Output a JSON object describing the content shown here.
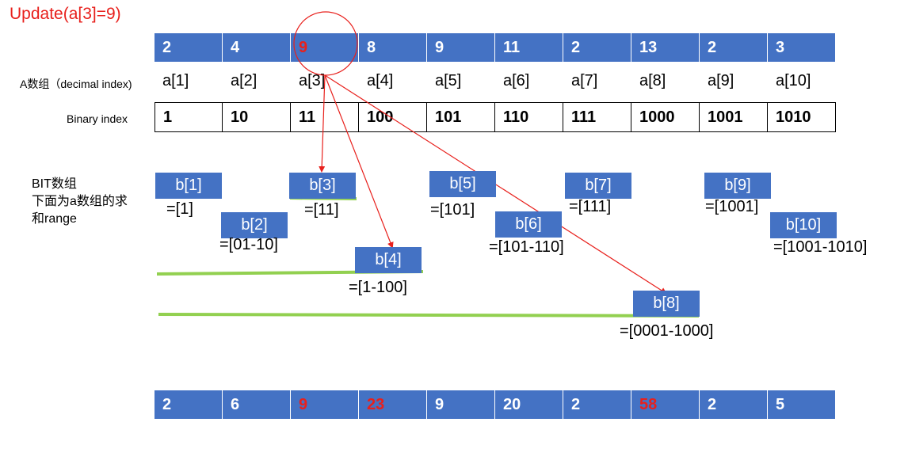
{
  "title": "Update(a[3]=9)",
  "array_values": [
    "2",
    "4",
    "9",
    "8",
    "9",
    "11",
    "2",
    "13",
    "2",
    "3"
  ],
  "array_highlight_index": 2,
  "a_label": "A数组（decimal index)",
  "a_names": [
    "a[1]",
    "a[2]",
    "a[3]",
    "a[4]",
    "a[5]",
    "a[6]",
    "a[7]",
    "a[8]",
    "a[9]",
    "a[10]"
  ],
  "binary_label": "Binary index",
  "binary_values": [
    "1",
    "10",
    "11",
    "100",
    "101",
    "110",
    "111",
    "1000",
    "1001",
    "1010"
  ],
  "bit_label": {
    "line1": "BIT数组",
    "line2": "下面为a数组的求",
    "line3": "和range"
  },
  "bit_nodes": [
    {
      "name": "b[1]",
      "range": "=[1]"
    },
    {
      "name": "b[2]",
      "range": "=[01-10]"
    },
    {
      "name": "b[3]",
      "range": "=[11]"
    },
    {
      "name": "b[4]",
      "range": "=[1-100]"
    },
    {
      "name": "b[5]",
      "range": "=[101]"
    },
    {
      "name": "b[6]",
      "range": "=[101-110]"
    },
    {
      "name": "b[7]",
      "range": "=[111]"
    },
    {
      "name": "b[8]",
      "range": "=[0001-1000]"
    },
    {
      "name": "b[9]",
      "range": "=[1001]"
    },
    {
      "name": "b[10]",
      "range": "=[1001-1010]"
    }
  ],
  "bit_values": [
    "2",
    "6",
    "9",
    "23",
    "9",
    "20",
    "2",
    "58",
    "2",
    "5"
  ],
  "bit_updated_indices": [
    2,
    3,
    7
  ],
  "colors": {
    "blue": "#4472c4",
    "red": "#e8201c",
    "green": "#92d050"
  }
}
